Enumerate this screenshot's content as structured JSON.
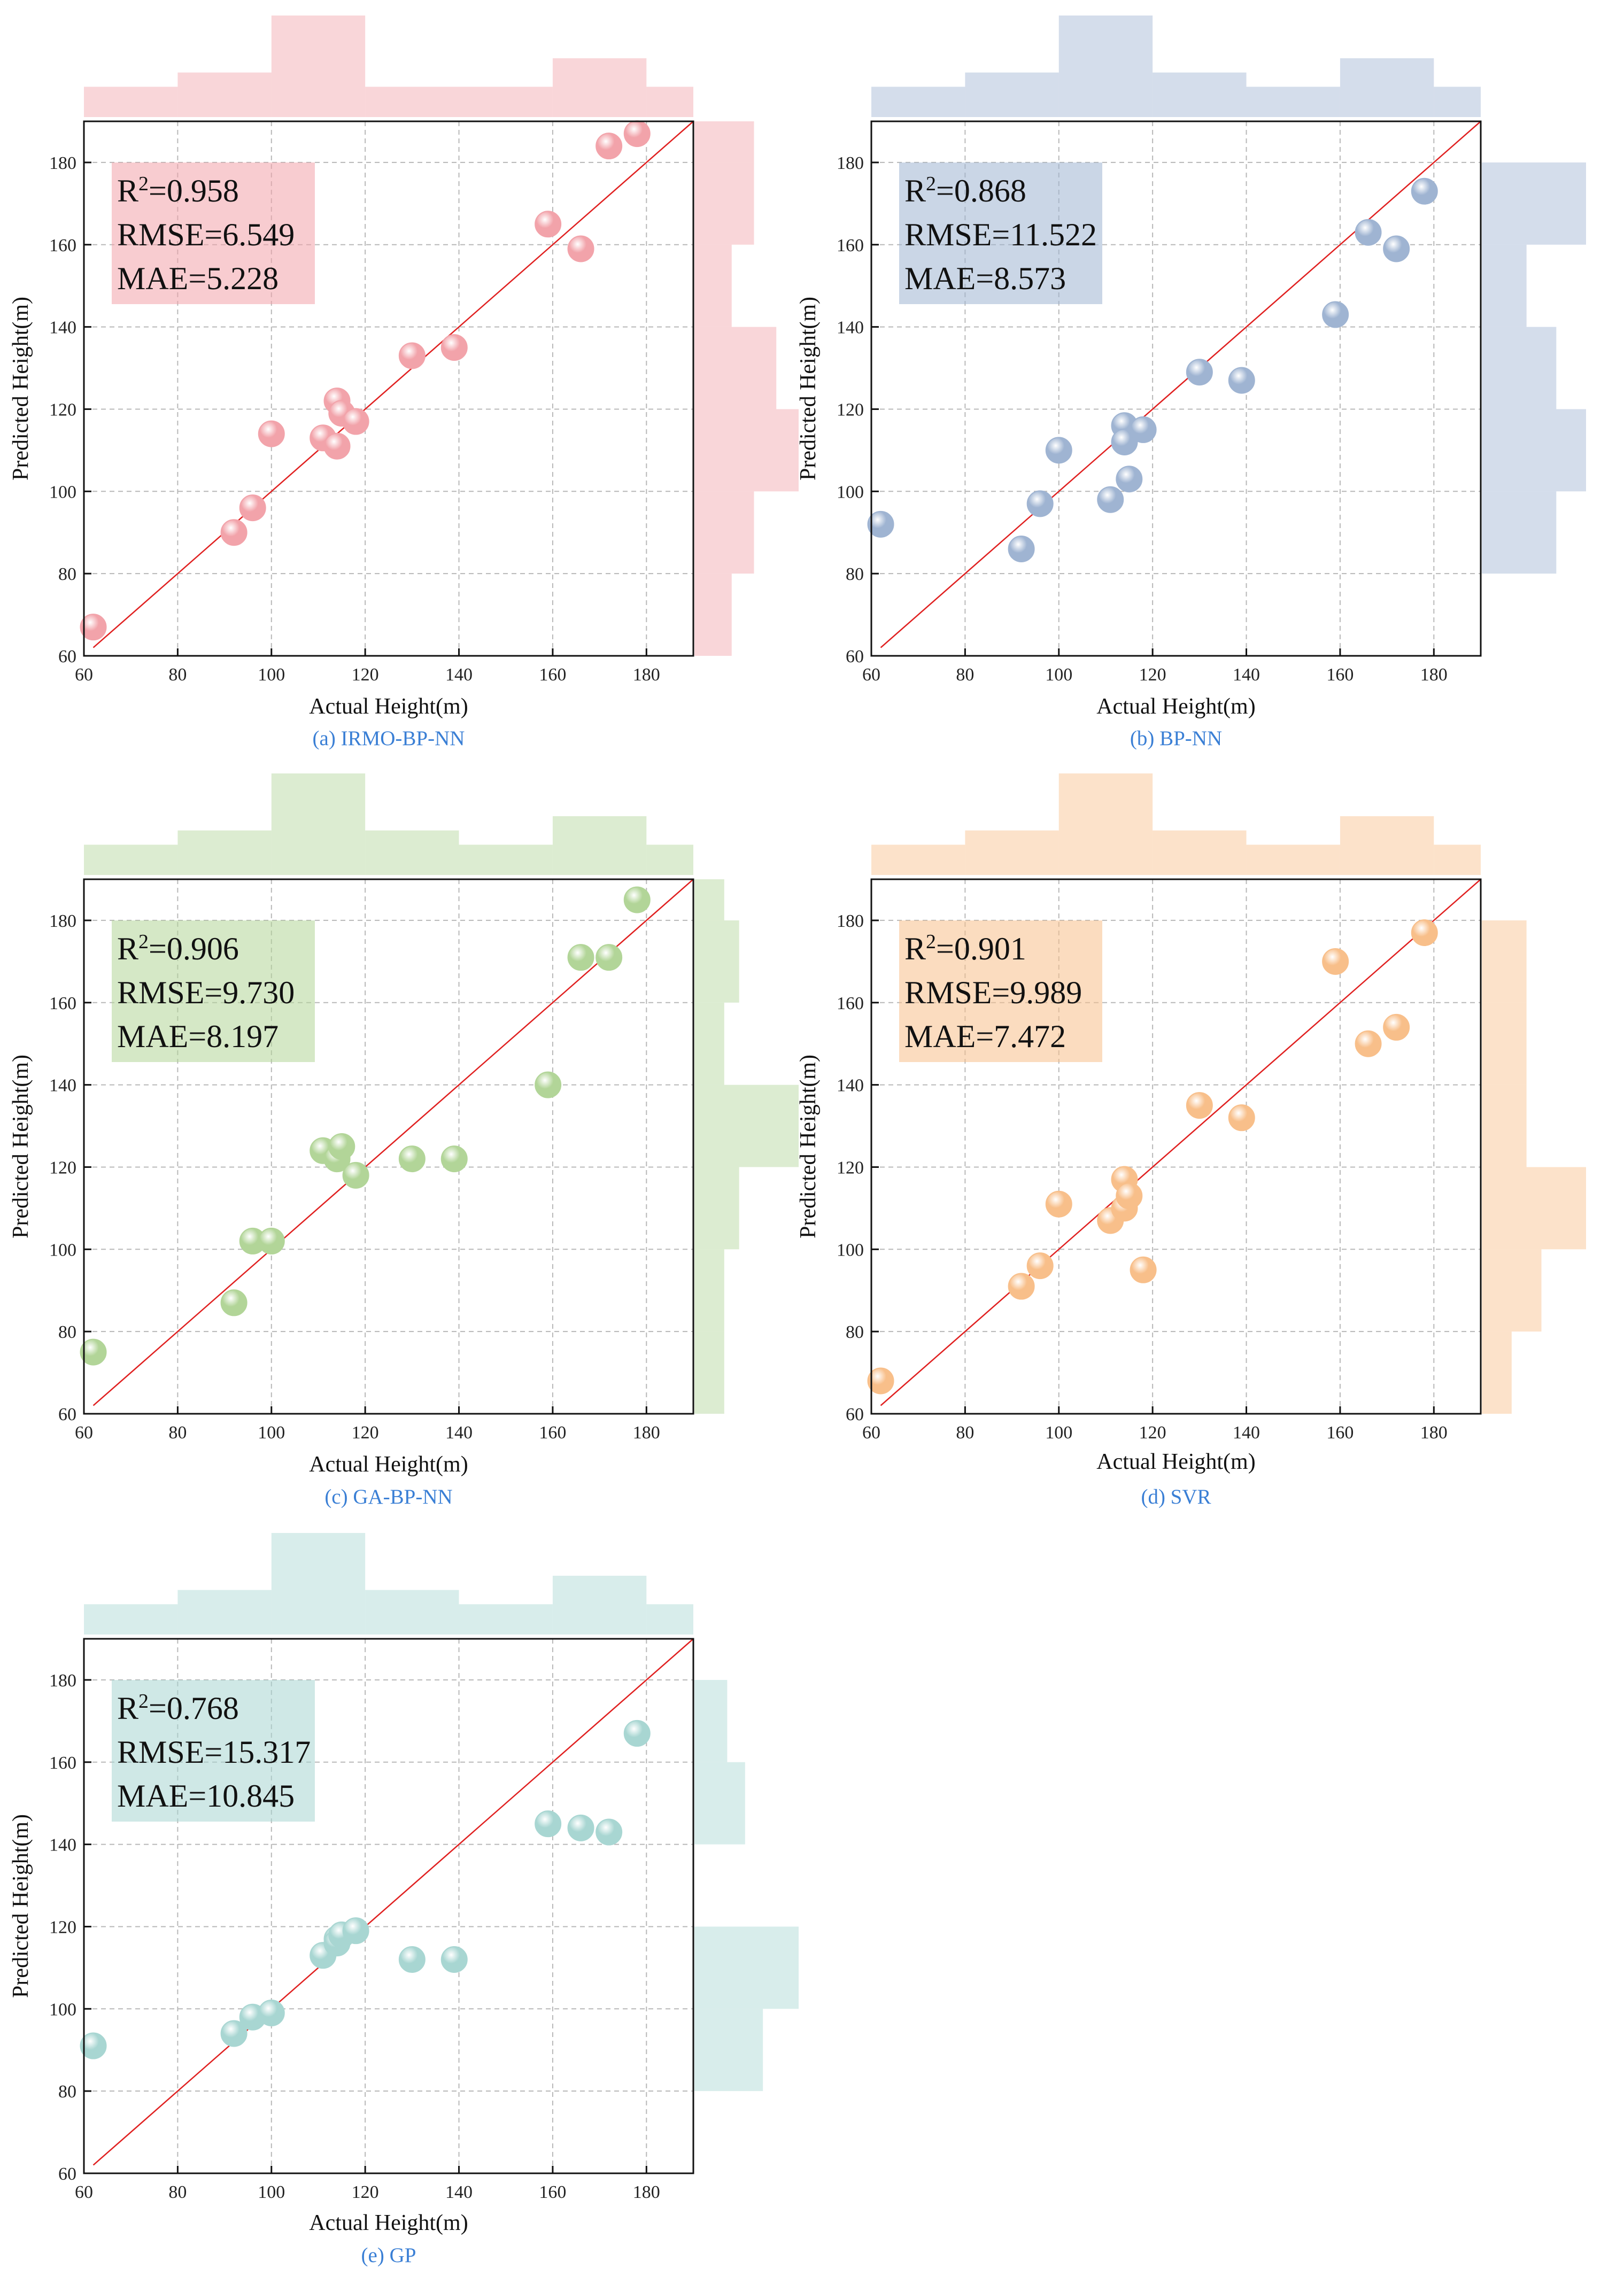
{
  "figure": {
    "background": "#ffffff"
  },
  "chart_data": [
    {
      "type": "scatter",
      "caption": "(a) IRMO-BP-NN",
      "xlabel": "Actual Height(m)",
      "ylabel": "Predicted Height(m)",
      "xlim": [
        60,
        190
      ],
      "ylim": [
        60,
        190
      ],
      "xticks": [
        "60",
        "80",
        "100",
        "120",
        "140",
        "160",
        "180"
      ],
      "yticks": [
        "60",
        "80",
        "100",
        "120",
        "140",
        "160",
        "180"
      ],
      "grid": true,
      "reference_line": "y = x",
      "color": "#f2a3aa",
      "metrics": {
        "r2_prefix": "R",
        "r2_sup": "2",
        "r2": "=0.958",
        "rmse": "RMSE=6.549",
        "mae": "MAE=5.228"
      },
      "x": [
        62,
        92,
        96,
        100,
        111,
        114,
        114,
        115,
        118,
        130,
        139,
        159,
        166,
        172,
        178
      ],
      "y": [
        67,
        90,
        96,
        114,
        113,
        122,
        111,
        119,
        117,
        133,
        135,
        165,
        159,
        184,
        187
      ],
      "hist_x": {
        "bin_edges": [
          60,
          80,
          100,
          120,
          140,
          160,
          180,
          190
        ],
        "counts": [
          1,
          2,
          6,
          1,
          1,
          3,
          1
        ]
      },
      "hist_y": {
        "bin_edges": [
          60,
          80,
          100,
          120,
          140,
          160,
          180,
          190
        ],
        "counts": [
          1,
          2,
          4,
          3,
          1,
          2,
          2
        ]
      }
    },
    {
      "type": "scatter",
      "caption": "(b) BP-NN",
      "xlabel": "Actual Height(m)",
      "ylabel": "Predicted Height(m)",
      "xlim": [
        60,
        190
      ],
      "ylim": [
        60,
        190
      ],
      "xticks": [
        "60",
        "80",
        "100",
        "120",
        "140",
        "160",
        "180"
      ],
      "yticks": [
        "60",
        "80",
        "100",
        "120",
        "140",
        "160",
        "180"
      ],
      "grid": true,
      "reference_line": "y = x",
      "color": "#9fb4d2",
      "metrics": {
        "r2_prefix": "R",
        "r2_sup": "2",
        "r2": "=0.868",
        "rmse": "RMSE=11.522",
        "mae": "MAE=8.573"
      },
      "x": [
        62,
        92,
        96,
        100,
        111,
        114,
        114,
        115,
        118,
        130,
        139,
        159,
        166,
        172,
        178
      ],
      "y": [
        92,
        86,
        97,
        110,
        98,
        116,
        112,
        103,
        115,
        129,
        127,
        143,
        163,
        159,
        173
      ],
      "hist_x": {
        "bin_edges": [
          60,
          80,
          100,
          120,
          140,
          160,
          180,
          190
        ],
        "counts": [
          1,
          2,
          6,
          2,
          1,
          3,
          1
        ]
      },
      "hist_y": {
        "bin_edges": [
          60,
          80,
          100,
          120,
          140,
          160,
          180,
          190
        ],
        "counts": [
          0,
          2,
          3,
          2,
          1,
          3,
          0
        ]
      }
    },
    {
      "type": "scatter",
      "caption": "(c) GA-BP-NN",
      "xlabel": "Actual Height(m)",
      "ylabel": "Predicted Height(m)",
      "xlim": [
        60,
        190
      ],
      "ylim": [
        60,
        190
      ],
      "xticks": [
        "60",
        "80",
        "100",
        "120",
        "140",
        "160",
        "180"
      ],
      "yticks": [
        "60",
        "80",
        "100",
        "120",
        "140",
        "160",
        "180"
      ],
      "grid": true,
      "reference_line": "y = x",
      "color": "#b2d598",
      "metrics": {
        "r2_prefix": "R",
        "r2_sup": "2",
        "r2": "=0.906",
        "rmse": "RMSE=9.730",
        "mae": "MAE=8.197"
      },
      "x": [
        62,
        92,
        96,
        100,
        111,
        114,
        114,
        115,
        118,
        130,
        139,
        159,
        166,
        172,
        178
      ],
      "y": [
        75,
        87,
        102,
        102,
        124,
        122,
        122,
        125,
        118,
        122,
        122,
        140,
        171,
        171,
        185
      ],
      "hist_x": {
        "bin_edges": [
          60,
          80,
          100,
          120,
          140,
          160,
          180,
          190
        ],
        "counts": [
          1,
          2,
          6,
          2,
          1,
          3,
          1
        ]
      },
      "hist_y": {
        "bin_edges": [
          60,
          80,
          100,
          120,
          140,
          160,
          180,
          190
        ],
        "counts": [
          1,
          1,
          2,
          6,
          1,
          2,
          1
        ]
      }
    },
    {
      "type": "scatter",
      "caption": "(d) SVR",
      "xlabel": "Actual Height(m)",
      "ylabel": "Predicted Height(m)",
      "xlim": [
        60,
        190
      ],
      "ylim": [
        60,
        190
      ],
      "xticks": [
        "60",
        "80",
        "100",
        "120",
        "140",
        "160",
        "180"
      ],
      "yticks": [
        "60",
        "80",
        "100",
        "120",
        "140",
        "160",
        "180"
      ],
      "grid": true,
      "reference_line": "y = x",
      "color": "#f8bf8a",
      "metrics": {
        "r2_prefix": "R",
        "r2_sup": "2",
        "r2": "=0.901",
        "rmse": "RMSE=9.989",
        "mae": "MAE=7.472"
      },
      "x": [
        62,
        92,
        96,
        100,
        111,
        114,
        114,
        115,
        118,
        130,
        139,
        159,
        166,
        172,
        178
      ],
      "y": [
        68,
        91,
        96,
        111,
        107,
        117,
        110,
        113,
        95,
        135,
        132,
        170,
        150,
        154,
        177
      ],
      "hist_x": {
        "bin_edges": [
          60,
          80,
          100,
          120,
          140,
          160,
          180,
          190
        ],
        "counts": [
          1,
          2,
          6,
          2,
          1,
          3,
          1
        ]
      },
      "hist_y": {
        "bin_edges": [
          60,
          80,
          100,
          120,
          140,
          160,
          180,
          190
        ],
        "counts": [
          1,
          3,
          6,
          2,
          2,
          2,
          0
        ]
      }
    },
    {
      "type": "scatter",
      "caption": "(e) GP",
      "xlabel": "Actual Height(m)",
      "ylabel": "Predicted Height(m)",
      "xlim": [
        60,
        190
      ],
      "ylim": [
        60,
        190
      ],
      "xticks": [
        "60",
        "80",
        "100",
        "120",
        "140",
        "160",
        "180"
      ],
      "yticks": [
        "60",
        "80",
        "100",
        "120",
        "140",
        "160",
        "180"
      ],
      "grid": true,
      "reference_line": "y = x",
      "color": "#a8d6d2",
      "metrics": {
        "r2_prefix": "R",
        "r2_sup": "2",
        "r2": "=0.768",
        "rmse": "RMSE=15.317",
        "mae": "MAE=10.845"
      },
      "x": [
        62,
        92,
        96,
        100,
        111,
        114,
        114,
        115,
        118,
        130,
        139,
        159,
        166,
        172,
        178
      ],
      "y": [
        91,
        94,
        98,
        99,
        113,
        117,
        116,
        118,
        119,
        112,
        112,
        145,
        144,
        143,
        167
      ],
      "hist_x": {
        "bin_edges": [
          60,
          80,
          100,
          120,
          140,
          160,
          180,
          190
        ],
        "counts": [
          1,
          2,
          6,
          2,
          1,
          3,
          1
        ]
      },
      "hist_y": {
        "bin_edges": [
          60,
          80,
          100,
          120,
          140,
          160,
          180,
          190
        ],
        "counts": [
          0,
          3,
          5,
          0,
          2,
          1,
          0
        ]
      }
    }
  ]
}
